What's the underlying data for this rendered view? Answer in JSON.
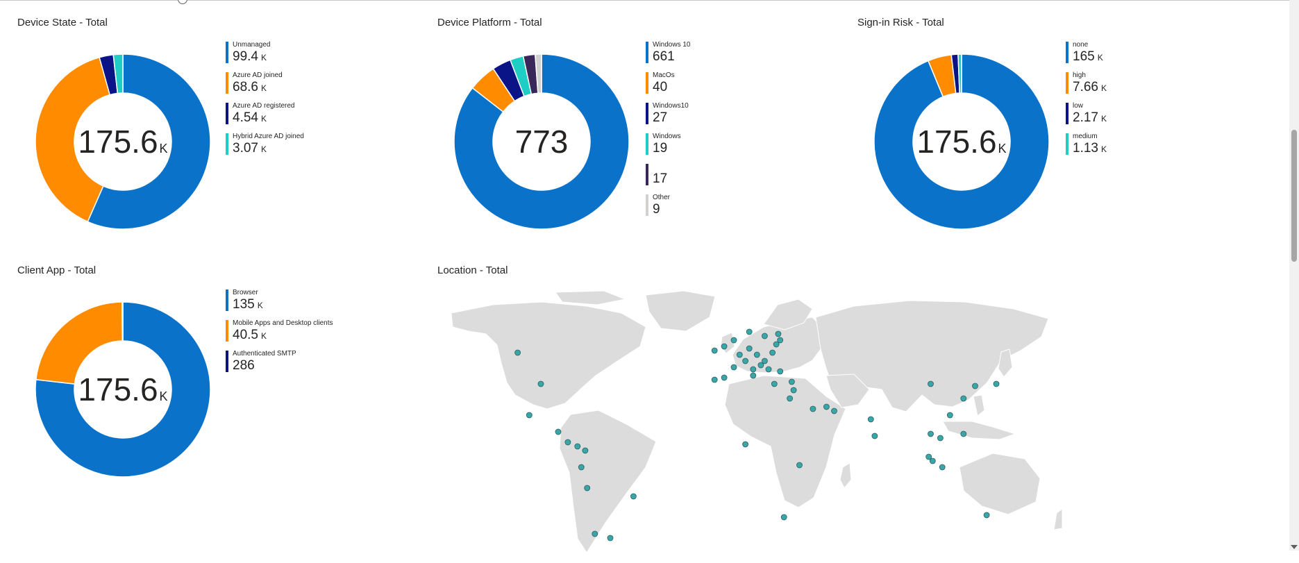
{
  "colors": {
    "blue": "#0a72c9",
    "orange": "#ff8c00",
    "navy": "#0b1487",
    "teal": "#1ecec4",
    "purple": "#3a2759",
    "gray": "#d2d0ce"
  },
  "chart_data": [
    {
      "type": "pie",
      "title": "Device State - Total",
      "center": {
        "value": "175.6",
        "unit": "K"
      },
      "legend_position": "right",
      "series": [
        {
          "name": "Unmanaged",
          "label": "99.4",
          "unit": "K",
          "value": 99400,
          "color": "#0a72c9"
        },
        {
          "name": "Azure AD joined",
          "label": "68.6",
          "unit": "K",
          "value": 68600,
          "color": "#ff8c00"
        },
        {
          "name": "Azure AD registered",
          "label": "4.54",
          "unit": "K",
          "value": 4540,
          "color": "#0b1487"
        },
        {
          "name": "Hybrid Azure AD joined",
          "label": "3.07",
          "unit": "K",
          "value": 3070,
          "color": "#1ecec4"
        }
      ]
    },
    {
      "type": "pie",
      "title": "Device Platform - Total",
      "center": {
        "value": "773",
        "unit": ""
      },
      "legend_position": "right",
      "series": [
        {
          "name": "Windows 10",
          "label": "661",
          "unit": "",
          "value": 661,
          "color": "#0a72c9"
        },
        {
          "name": "MacOs",
          "label": "40",
          "unit": "",
          "value": 40,
          "color": "#ff8c00"
        },
        {
          "name": "Windows10",
          "label": "27",
          "unit": "",
          "value": 27,
          "color": "#0b1487"
        },
        {
          "name": "Windows",
          "label": "19",
          "unit": "",
          "value": 19,
          "color": "#1ecec4"
        },
        {
          "name": "",
          "label": "17",
          "unit": "",
          "value": 17,
          "color": "#3a2759"
        },
        {
          "name": "Other",
          "label": "9",
          "unit": "",
          "value": 9,
          "color": "#d2d0ce"
        }
      ]
    },
    {
      "type": "pie",
      "title": "Sign-in Risk - Total",
      "center": {
        "value": "175.6",
        "unit": "K"
      },
      "legend_position": "right",
      "series": [
        {
          "name": "none",
          "label": "165",
          "unit": "K",
          "value": 165000,
          "color": "#0a72c9"
        },
        {
          "name": "high",
          "label": "7.66",
          "unit": "K",
          "value": 7660,
          "color": "#ff8c00"
        },
        {
          "name": "low",
          "label": "2.17",
          "unit": "K",
          "value": 2170,
          "color": "#0b1487"
        },
        {
          "name": "medium",
          "label": "1.13",
          "unit": "K",
          "value": 1130,
          "color": "#1ecec4"
        }
      ]
    },
    {
      "type": "pie",
      "title": "Client App - Total",
      "center": {
        "value": "175.6",
        "unit": "K"
      },
      "legend_position": "right",
      "series": [
        {
          "name": "Browser",
          "label": "135",
          "unit": "K",
          "value": 135000,
          "color": "#0a72c9"
        },
        {
          "name": "Mobile Apps and Desktop clients",
          "label": "40.5",
          "unit": "K",
          "value": 40500,
          "color": "#ff8c00"
        },
        {
          "name": "Authenticated SMTP",
          "label": "286",
          "unit": "",
          "value": 286,
          "color": "#0b1487"
        }
      ]
    }
  ],
  "location_map": {
    "title": "Location - Total",
    "land_color": "#dcdcdc",
    "point_color": "#3aa6a8",
    "points": [
      {
        "lon": -110,
        "lat": 53
      },
      {
        "lon": -98,
        "lat": 38
      },
      {
        "lon": -104,
        "lat": 23
      },
      {
        "lon": -89,
        "lat": 15
      },
      {
        "lon": -84,
        "lat": 10
      },
      {
        "lon": -79,
        "lat": 8
      },
      {
        "lon": -75,
        "lat": 6
      },
      {
        "lon": -77,
        "lat": -2
      },
      {
        "lon": -74,
        "lat": -12
      },
      {
        "lon": -50,
        "lat": -16
      },
      {
        "lon": -70,
        "lat": -34
      },
      {
        "lon": -62,
        "lat": -36
      },
      {
        "lon": -8,
        "lat": 54
      },
      {
        "lon": -3,
        "lat": 56
      },
      {
        "lon": 2,
        "lat": 59
      },
      {
        "lon": 10,
        "lat": 63
      },
      {
        "lon": 18,
        "lat": 61
      },
      {
        "lon": 25,
        "lat": 62
      },
      {
        "lon": 26,
        "lat": 59
      },
      {
        "lon": 24,
        "lat": 57
      },
      {
        "lon": 10,
        "lat": 55
      },
      {
        "lon": 5,
        "lat": 52
      },
      {
        "lon": 14,
        "lat": 52
      },
      {
        "lon": 22,
        "lat": 53
      },
      {
        "lon": 8,
        "lat": 49
      },
      {
        "lon": 18,
        "lat": 49
      },
      {
        "lon": 16,
        "lat": 47
      },
      {
        "lon": 2,
        "lat": 46
      },
      {
        "lon": 12,
        "lat": 45
      },
      {
        "lon": 20,
        "lat": 45
      },
      {
        "lon": 26,
        "lat": 44
      },
      {
        "lon": -8,
        "lat": 40
      },
      {
        "lon": -3,
        "lat": 41
      },
      {
        "lon": 12,
        "lat": 42
      },
      {
        "lon": 23,
        "lat": 38
      },
      {
        "lon": 32,
        "lat": 39
      },
      {
        "lon": 33,
        "lat": 35
      },
      {
        "lon": 31,
        "lat": 31
      },
      {
        "lon": 43,
        "lat": 26
      },
      {
        "lon": 50,
        "lat": 27
      },
      {
        "lon": 54,
        "lat": 25
      },
      {
        "lon": 73,
        "lat": 21
      },
      {
        "lon": 75,
        "lat": 13
      },
      {
        "lon": 104,
        "lat": 38
      },
      {
        "lon": 127,
        "lat": 37
      },
      {
        "lon": 138,
        "lat": 38
      },
      {
        "lon": 121,
        "lat": 31
      },
      {
        "lon": 114,
        "lat": 23
      },
      {
        "lon": 104,
        "lat": 14
      },
      {
        "lon": 109,
        "lat": 12
      },
      {
        "lon": 121,
        "lat": 14
      },
      {
        "lon": 103,
        "lat": 3
      },
      {
        "lon": 105,
        "lat": 1
      },
      {
        "lon": 110,
        "lat": -2
      },
      {
        "lon": 133,
        "lat": -25
      },
      {
        "lon": 8,
        "lat": 9
      },
      {
        "lon": 36,
        "lat": -1
      },
      {
        "lon": 28,
        "lat": -26
      }
    ]
  },
  "scrollbar": {
    "position": 0.32
  }
}
